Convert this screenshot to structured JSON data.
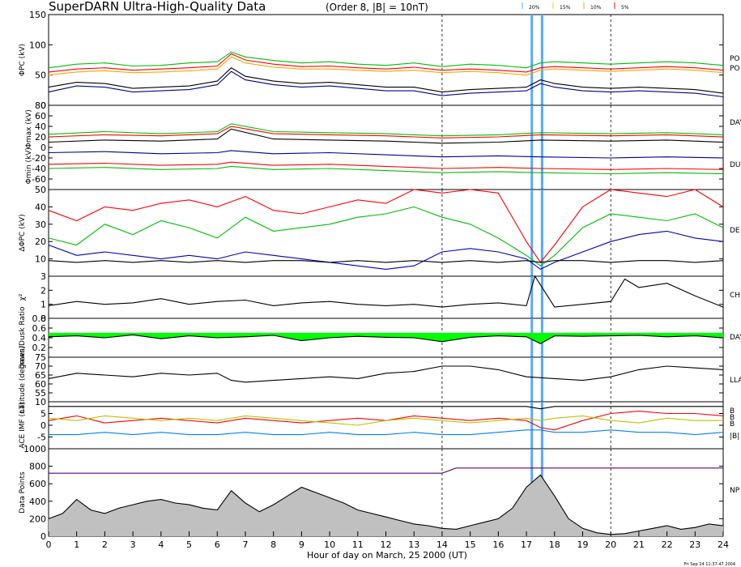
{
  "title": "SuperDARN Ultra-High-Quality Data",
  "subtitle": "(Order 8, |B| = 10nT)",
  "legend": [
    {
      "label": "20%",
      "color": "#3cb3ff"
    },
    {
      "label": "15%",
      "color": "#ffcc00"
    },
    {
      "label": "10%",
      "color": "#ffa500"
    },
    {
      "label": "5%",
      "color": "#ff0000"
    }
  ],
  "xlabel": "Hour of day on March, 25 2000 (UT)",
  "timestamp": "Fri Sep 24 11:37:47 2004",
  "right_labels": [
    "PO",
    "PO",
    "DAY",
    "DU",
    "DE",
    "CH",
    "DAY",
    "LLA",
    "B",
    "B",
    "B",
    "|B|",
    "NP"
  ],
  "chart_data": [
    {
      "type": "line",
      "id": "phi_pc",
      "ylabel": "ΦPC (kV)",
      "ylim": [
        0,
        150
      ],
      "yticks": [
        0,
        50,
        100,
        150
      ],
      "x": [
        0,
        1,
        2,
        3,
        4,
        5,
        6,
        6.5,
        7,
        8,
        9,
        10,
        11,
        12,
        13,
        14,
        15,
        16,
        17,
        17.5,
        18,
        19,
        20,
        21,
        22,
        23,
        24
      ],
      "series": [
        {
          "name": "",
          "color": "#00c000",
          "values": [
            62,
            68,
            70,
            65,
            66,
            70,
            72,
            88,
            80,
            74,
            70,
            72,
            68,
            66,
            70,
            64,
            68,
            66,
            62,
            70,
            72,
            70,
            68,
            70,
            72,
            70,
            66
          ]
        },
        {
          "name": "",
          "color": "#ff0000",
          "values": [
            55,
            60,
            62,
            58,
            60,
            62,
            65,
            85,
            75,
            68,
            64,
            65,
            62,
            60,
            63,
            58,
            60,
            58,
            55,
            62,
            64,
            62,
            60,
            62,
            64,
            62,
            58
          ]
        },
        {
          "name": "",
          "color": "#ffa500",
          "values": [
            50,
            55,
            57,
            54,
            55,
            57,
            60,
            80,
            70,
            63,
            60,
            60,
            58,
            56,
            58,
            54,
            56,
            54,
            50,
            58,
            60,
            58,
            56,
            58,
            60,
            58,
            54
          ]
        },
        {
          "name": "",
          "color": "#000000",
          "values": [
            30,
            38,
            36,
            28,
            30,
            32,
            40,
            62,
            48,
            40,
            36,
            38,
            34,
            30,
            30,
            22,
            26,
            28,
            30,
            42,
            36,
            30,
            28,
            30,
            28,
            26,
            20
          ]
        },
        {
          "name": "",
          "color": "#000090",
          "values": [
            22,
            32,
            30,
            22,
            24,
            26,
            34,
            56,
            42,
            34,
            30,
            32,
            28,
            24,
            24,
            16,
            20,
            22,
            24,
            36,
            30,
            24,
            22,
            24,
            22,
            20,
            14
          ]
        }
      ]
    },
    {
      "type": "line",
      "id": "phi_max_min",
      "ylabel_top": "Φmax (kV)",
      "ylabel_bottom": "Φmin (kV)",
      "ylim": [
        -80,
        80
      ],
      "yticks": [
        -60,
        -40,
        -20,
        0,
        20,
        40,
        60,
        80
      ],
      "x": [
        0,
        2,
        4,
        6,
        6.5,
        8,
        10,
        12,
        14,
        16,
        17.5,
        20,
        22,
        24
      ],
      "series": [
        {
          "name": "",
          "color": "#00c000",
          "values": [
            25,
            30,
            26,
            30,
            45,
            30,
            28,
            26,
            22,
            24,
            28,
            26,
            28,
            24
          ]
        },
        {
          "name": "",
          "color": "#ff0000",
          "values": [
            20,
            24,
            22,
            26,
            40,
            26,
            24,
            22,
            18,
            20,
            24,
            22,
            24,
            20
          ]
        },
        {
          "name": "",
          "color": "#000000",
          "values": [
            10,
            14,
            12,
            16,
            35,
            16,
            14,
            12,
            8,
            10,
            14,
            12,
            14,
            10
          ]
        },
        {
          "name": "",
          "color": "#000090",
          "values": [
            -10,
            -8,
            -12,
            -10,
            -6,
            -12,
            -10,
            -14,
            -18,
            -16,
            -18,
            -20,
            -18,
            -20
          ]
        },
        {
          "name": "",
          "color": "#ff0000",
          "values": [
            -32,
            -30,
            -34,
            -32,
            -28,
            -34,
            -32,
            -36,
            -40,
            -38,
            -40,
            -42,
            -40,
            -42
          ]
        },
        {
          "name": "",
          "color": "#00c000",
          "values": [
            -40,
            -38,
            -42,
            -40,
            -36,
            -42,
            -40,
            -44,
            -48,
            -46,
            -48,
            -50,
            -48,
            -50
          ]
        }
      ]
    },
    {
      "type": "line",
      "id": "delta_phi",
      "ylabel": "ΔΦPC (kV)",
      "ylim": [
        0,
        50
      ],
      "yticks": [
        10,
        20,
        30,
        40,
        50
      ],
      "x": [
        0,
        1,
        2,
        3,
        4,
        5,
        6,
        7,
        8,
        9,
        10,
        11,
        12,
        13,
        14,
        15,
        16,
        17,
        17.5,
        18,
        19,
        20,
        21,
        22,
        23,
        24
      ],
      "series": [
        {
          "name": "",
          "color": "#ff0000",
          "values": [
            38,
            32,
            40,
            38,
            42,
            44,
            40,
            46,
            38,
            36,
            40,
            44,
            42,
            50,
            48,
            50,
            48,
            20,
            8,
            18,
            40,
            50,
            48,
            46,
            50,
            40
          ]
        },
        {
          "name": "",
          "color": "#00c000",
          "values": [
            22,
            18,
            30,
            24,
            32,
            28,
            22,
            34,
            26,
            28,
            30,
            34,
            36,
            40,
            34,
            30,
            22,
            12,
            6,
            12,
            28,
            36,
            34,
            32,
            36,
            28
          ]
        },
        {
          "name": "",
          "color": "#0000c0",
          "values": [
            18,
            12,
            14,
            12,
            10,
            12,
            10,
            14,
            12,
            10,
            8,
            6,
            4,
            6,
            14,
            16,
            14,
            10,
            4,
            8,
            14,
            20,
            24,
            26,
            22,
            20
          ]
        },
        {
          "name": "",
          "color": "#000000",
          "values": [
            9,
            8,
            9,
            8,
            9,
            8,
            9,
            8,
            9,
            9,
            8,
            9,
            8,
            9,
            8,
            9,
            8,
            9,
            8,
            9,
            9,
            8,
            9,
            9,
            8,
            9
          ]
        }
      ]
    },
    {
      "type": "line",
      "id": "chi2",
      "ylabel": "χ²",
      "ylim": [
        0,
        3
      ],
      "yticks": [
        0,
        1,
        2,
        3
      ],
      "x": [
        0,
        1,
        2,
        3,
        4,
        5,
        6,
        7,
        8,
        9,
        10,
        11,
        12,
        13,
        14,
        15,
        16,
        17,
        17.3,
        18,
        19,
        20,
        20.5,
        21,
        22,
        23,
        24
      ],
      "series": [
        {
          "name": "",
          "color": "#000000",
          "values": [
            0.9,
            1.2,
            1.0,
            1.1,
            1.4,
            1.0,
            1.2,
            1.3,
            0.9,
            1.1,
            1.2,
            1.0,
            0.9,
            1.0,
            0.8,
            1.0,
            1.1,
            0.9,
            3.0,
            0.8,
            1.0,
            1.2,
            2.8,
            2.2,
            2.5,
            1.6,
            0.8
          ]
        }
      ]
    },
    {
      "type": "area",
      "id": "dawn_dusk_ratio",
      "ylabel": "Dawn/Dusk Ratio",
      "ylim": [
        0,
        0.8
      ],
      "yticks": [
        0.2,
        0.4,
        0.6,
        0.8
      ],
      "baseline": 0.5,
      "x": [
        0,
        1,
        2,
        3,
        4,
        5,
        6,
        7,
        8,
        9,
        10,
        11,
        12,
        13,
        14,
        15,
        16,
        17,
        17.5,
        18,
        19,
        20,
        21,
        22,
        23,
        24
      ],
      "series": [
        {
          "name": "",
          "color": "#000000",
          "fill": "#00ff00",
          "values": [
            0.42,
            0.44,
            0.4,
            0.46,
            0.38,
            0.44,
            0.4,
            0.42,
            0.45,
            0.34,
            0.4,
            0.43,
            0.41,
            0.4,
            0.32,
            0.41,
            0.44,
            0.42,
            0.28,
            0.44,
            0.43,
            0.44,
            0.45,
            0.42,
            0.44,
            0.4
          ]
        }
      ]
    },
    {
      "type": "line",
      "id": "latitude",
      "ylabel": "Latitude (degrees)",
      "ylim": [
        50,
        75
      ],
      "yticks": [
        55,
        60,
        65,
        70,
        75
      ],
      "x": [
        0,
        1,
        2,
        3,
        4,
        5,
        6,
        6.5,
        7,
        8,
        9,
        10,
        11,
        12,
        13,
        14,
        15,
        16,
        17,
        18,
        19,
        20,
        21,
        22,
        23,
        24
      ],
      "series": [
        {
          "name": "",
          "color": "#000000",
          "values": [
            63,
            66,
            65,
            64,
            66,
            65,
            66,
            62,
            61,
            62,
            63,
            64,
            63,
            66,
            67,
            70,
            70,
            68,
            64,
            63,
            62,
            64,
            68,
            70,
            69,
            68
          ]
        }
      ]
    },
    {
      "type": "line",
      "id": "imf",
      "ylabel": "ACE IMF (nT)",
      "ylim": [
        -10,
        10
      ],
      "yticks": [
        -5,
        0,
        5,
        10
      ],
      "x": [
        0,
        1,
        2,
        3,
        4,
        5,
        6,
        7,
        8,
        9,
        10,
        11,
        12,
        13,
        14,
        15,
        16,
        17,
        17.5,
        18,
        19,
        20,
        21,
        22,
        23,
        24
      ],
      "series": [
        {
          "name": "",
          "color": "#000000",
          "values": [
            8,
            8,
            8,
            8,
            8,
            8,
            8,
            8,
            8,
            8,
            8,
            8,
            8,
            8,
            8,
            8,
            8,
            8,
            7,
            8,
            8,
            8,
            8,
            8,
            8,
            8
          ]
        },
        {
          "name": "",
          "color": "#ff0000",
          "values": [
            2,
            4,
            1,
            2,
            3,
            2,
            1,
            3,
            2,
            1,
            2,
            3,
            2,
            4,
            3,
            2,
            3,
            2,
            -1,
            -2,
            2,
            5,
            6,
            5,
            5,
            4
          ]
        },
        {
          "name": "",
          "color": "#c0c000",
          "values": [
            3,
            2,
            4,
            3,
            2,
            3,
            2,
            4,
            3,
            2,
            1,
            0,
            2,
            3,
            2,
            1,
            2,
            3,
            2,
            3,
            4,
            2,
            1,
            3,
            2,
            2
          ]
        },
        {
          "name": "",
          "color": "#0080ff",
          "values": [
            -4,
            -4,
            -3,
            -4,
            -3,
            -4,
            -4,
            -3,
            -4,
            -4,
            -3,
            -4,
            -4,
            -3,
            -4,
            -4,
            -3,
            -2,
            -2,
            -3,
            -3,
            -2,
            -3,
            -3,
            -4,
            -3
          ]
        }
      ]
    },
    {
      "type": "area",
      "id": "data_points",
      "ylabel": "Data Points",
      "ylim": [
        0,
        1000
      ],
      "yticks": [
        0,
        200,
        400,
        600,
        800,
        1000
      ],
      "x": [
        0,
        0.5,
        1,
        1.5,
        2,
        2.5,
        3,
        3.5,
        4,
        4.5,
        5,
        5.5,
        6,
        6.5,
        7,
        7.5,
        8,
        8.5,
        9,
        9.5,
        10,
        10.5,
        11,
        11.5,
        12,
        12.5,
        13,
        13.5,
        14,
        14.5,
        15,
        15.5,
        16,
        16.5,
        17,
        17.5,
        18,
        18.5,
        19,
        19.5,
        20,
        20.5,
        21,
        21.5,
        22,
        22.5,
        23,
        23.5,
        24
      ],
      "series": [
        {
          "name": "",
          "color": "#000000",
          "fill": "#c0c0c0",
          "values": [
            200,
            260,
            420,
            300,
            260,
            320,
            360,
            400,
            420,
            380,
            360,
            320,
            300,
            520,
            380,
            280,
            360,
            460,
            560,
            500,
            440,
            380,
            300,
            260,
            220,
            180,
            140,
            120,
            90,
            80,
            120,
            160,
            200,
            320,
            560,
            700,
            460,
            200,
            90,
            40,
            20,
            30,
            60,
            90,
            120,
            80,
            100,
            140,
            120
          ]
        },
        {
          "name": "",
          "color": "#600080",
          "fill": "none",
          "values": [
            720,
            720,
            720,
            720,
            720,
            720,
            720,
            720,
            720,
            720,
            720,
            720,
            720,
            720,
            720,
            720,
            720,
            720,
            720,
            720,
            720,
            720,
            720,
            720,
            720,
            720,
            720,
            720,
            720,
            780,
            780,
            780,
            780,
            780,
            780,
            780,
            780,
            780,
            780,
            780,
            780,
            780,
            780,
            780,
            780,
            780,
            780,
            780,
            780
          ]
        }
      ]
    }
  ],
  "x_axis": {
    "range": [
      0,
      24
    ],
    "ticks": [
      "0",
      "1",
      "2",
      "3",
      "4",
      "5",
      "6",
      "7",
      "8",
      "9",
      "10",
      "11",
      "12",
      "13",
      "14",
      "15",
      "16",
      "17",
      "18",
      "19",
      "20",
      "21",
      "22",
      "23",
      "24"
    ]
  },
  "vertical_markers": {
    "dashed_hours": [
      14,
      20
    ],
    "highlight_band_hours": [
      17.15,
      17.6
    ]
  }
}
